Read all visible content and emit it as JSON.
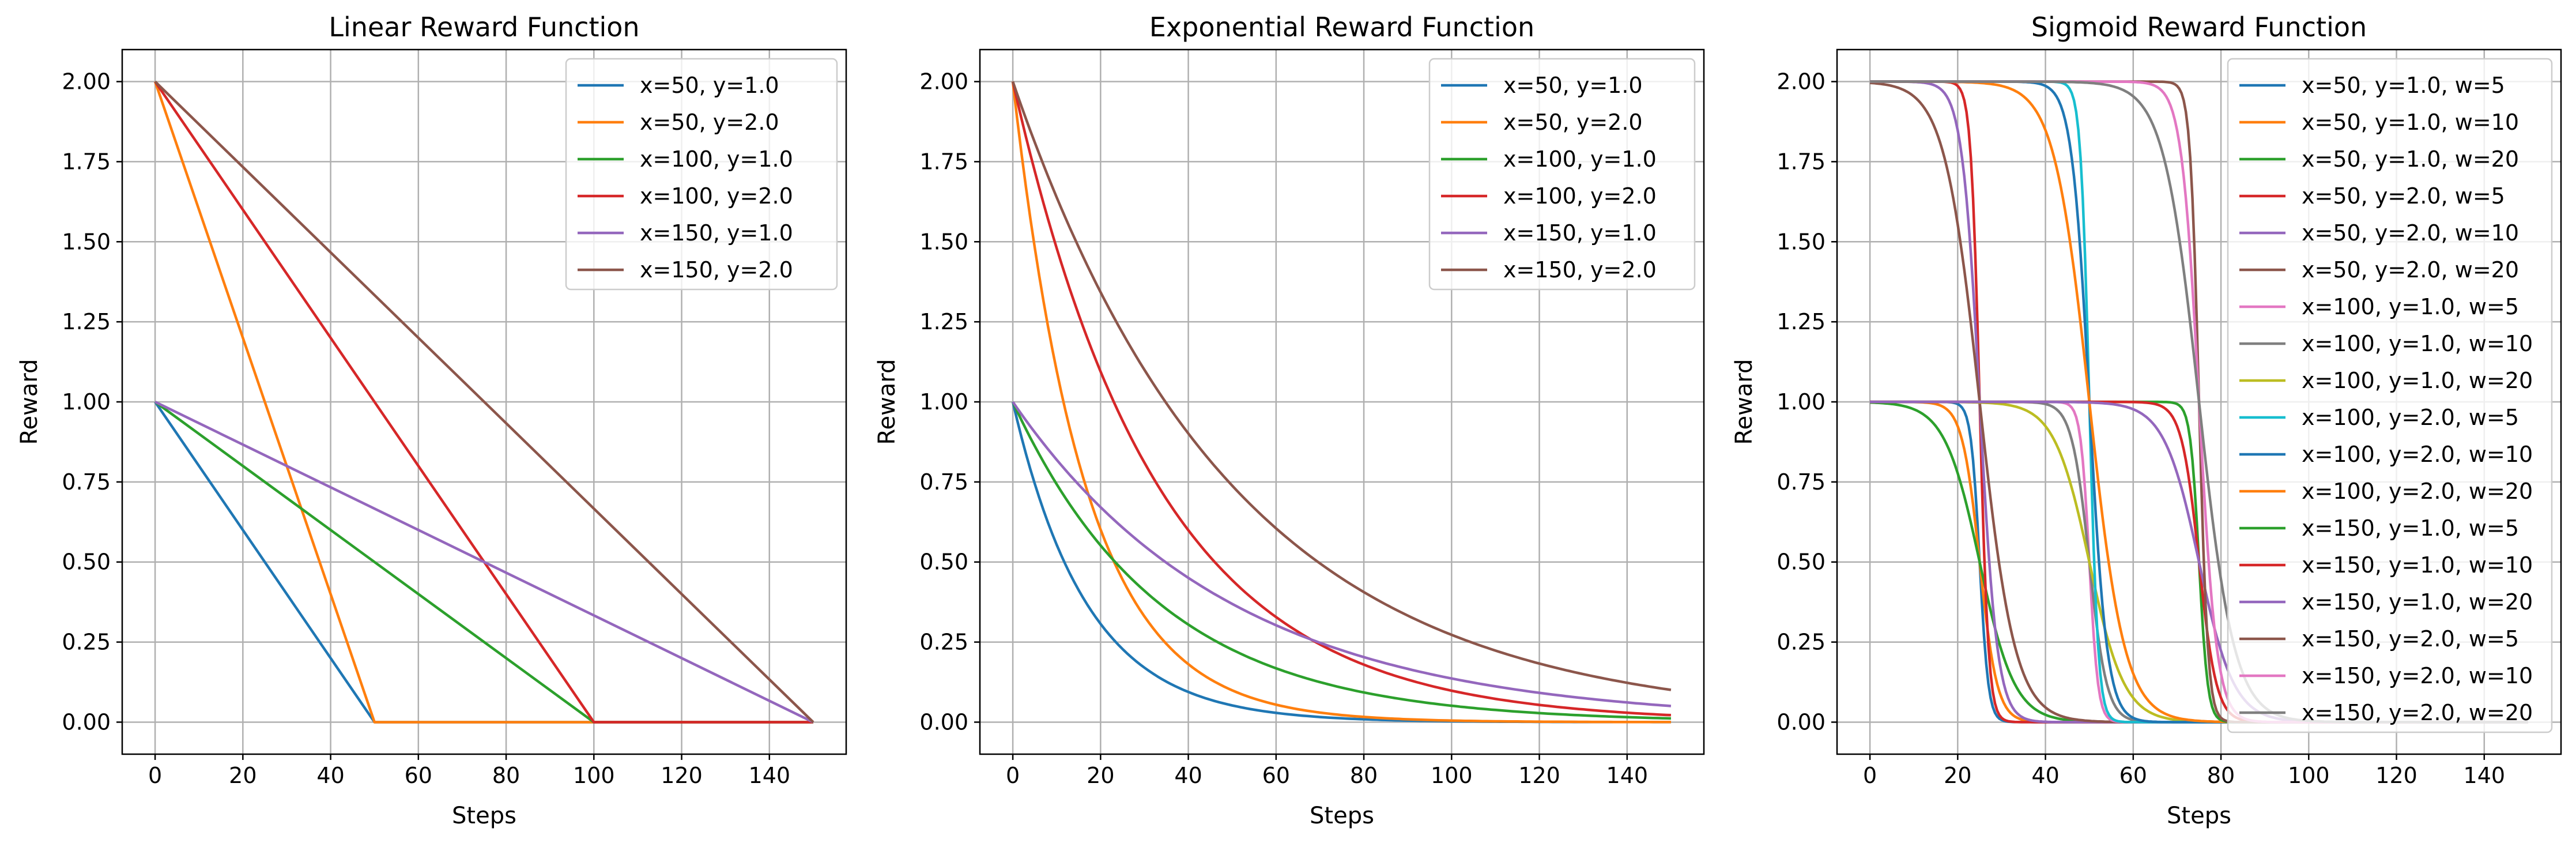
{
  "figure": {
    "colors": [
      "#1f77b4",
      "#ff7f0e",
      "#2ca02c",
      "#d62728",
      "#9467bd",
      "#8c564b",
      "#e377c2",
      "#7f7f7f",
      "#bcbd22",
      "#17becf"
    ]
  },
  "chart_data": [
    {
      "type": "line",
      "title": "Linear Reward Function",
      "xlabel": "Steps",
      "ylabel": "Reward",
      "xlim": [
        -7.5,
        157.5
      ],
      "ylim": [
        -0.1,
        2.1
      ],
      "xticks": [
        0,
        20,
        40,
        60,
        80,
        100,
        120,
        140
      ],
      "yticks": [
        "0.00",
        "0.25",
        "0.50",
        "0.75",
        "1.00",
        "1.25",
        "1.50",
        "1.75",
        "2.00"
      ],
      "grid": true,
      "legend_position": "top-right",
      "function": "linear",
      "series": [
        {
          "name": "x=50, y=1.0",
          "x": [
            0,
            50,
            150
          ],
          "y": [
            1.0,
            0,
            0
          ]
        },
        {
          "name": "x=50, y=2.0",
          "x": [
            0,
            50,
            150
          ],
          "y": [
            2.0,
            0,
            0
          ]
        },
        {
          "name": "x=100, y=1.0",
          "x": [
            0,
            100,
            150
          ],
          "y": [
            1.0,
            0,
            0
          ]
        },
        {
          "name": "x=100, y=2.0",
          "x": [
            0,
            100,
            150
          ],
          "y": [
            2.0,
            0,
            0
          ]
        },
        {
          "name": "x=150, y=1.0",
          "x": [
            0,
            150
          ],
          "y": [
            1.0,
            0
          ]
        },
        {
          "name": "x=150, y=2.0",
          "x": [
            0,
            150
          ],
          "y": [
            2.0,
            0
          ]
        }
      ]
    },
    {
      "type": "line",
      "title": "Exponential Reward Function",
      "xlabel": "Steps",
      "ylabel": "Reward",
      "xlim": [
        -7.5,
        157.5
      ],
      "ylim": [
        -0.1,
        2.1
      ],
      "xticks": [
        0,
        20,
        40,
        60,
        80,
        100,
        120,
        140
      ],
      "yticks": [
        "0.00",
        "0.25",
        "0.50",
        "0.75",
        "1.00",
        "1.25",
        "1.50",
        "1.75",
        "2.00"
      ],
      "grid": true,
      "legend_position": "top-right",
      "function": "exponential",
      "series": [
        {
          "name": "x=50, y=1.0",
          "x": [
            0,
            10,
            20,
            30,
            40,
            60,
            80,
            100,
            150
          ],
          "y": [
            1.0,
            0.55,
            0.3,
            0.17,
            0.09,
            0.03,
            0.01,
            0.0,
            0.0
          ]
        },
        {
          "name": "x=50, y=2.0",
          "x": [
            0,
            10,
            20,
            30,
            40,
            60,
            80,
            100,
            150
          ],
          "y": [
            2.0,
            1.1,
            0.61,
            0.33,
            0.18,
            0.05,
            0.02,
            0.0,
            0.0
          ]
        },
        {
          "name": "x=100, y=1.0",
          "x": [
            0,
            10,
            20,
            30,
            40,
            60,
            80,
            100,
            150
          ],
          "y": [
            1.0,
            0.74,
            0.55,
            0.41,
            0.3,
            0.17,
            0.09,
            0.05,
            0.01
          ]
        },
        {
          "name": "x=100, y=2.0",
          "x": [
            0,
            10,
            20,
            30,
            40,
            60,
            80,
            100,
            150
          ],
          "y": [
            2.0,
            1.48,
            1.1,
            0.81,
            0.61,
            0.33,
            0.18,
            0.1,
            0.02
          ]
        },
        {
          "name": "x=150, y=1.0",
          "x": [
            0,
            10,
            20,
            30,
            40,
            60,
            80,
            100,
            150
          ],
          "y": [
            1.0,
            0.82,
            0.67,
            0.55,
            0.45,
            0.3,
            0.2,
            0.14,
            0.02
          ]
        },
        {
          "name": "x=150, y=2.0",
          "x": [
            0,
            10,
            20,
            30,
            40,
            60,
            80,
            100,
            150
          ],
          "y": [
            2.0,
            1.64,
            1.34,
            1.1,
            0.9,
            0.61,
            0.41,
            0.27,
            0.02
          ]
        }
      ]
    },
    {
      "type": "line",
      "title": "Sigmoid Reward Function",
      "xlabel": "Steps",
      "ylabel": "Reward",
      "xlim": [
        -7.5,
        157.5
      ],
      "ylim": [
        -0.1,
        2.1
      ],
      "xticks": [
        0,
        20,
        40,
        60,
        80,
        100,
        120,
        140
      ],
      "yticks": [
        "0.00",
        "0.25",
        "0.50",
        "0.75",
        "1.00",
        "1.25",
        "1.50",
        "1.75",
        "2.00"
      ],
      "grid": true,
      "legend_position": "top-right",
      "function": "sigmoid",
      "series": [
        {
          "name": "x=50, y=1.0, w=5",
          "x": [
            0,
            20,
            23,
            25,
            27,
            30,
            40,
            150
          ],
          "y": [
            1.0,
            0.99,
            0.83,
            0.5,
            0.17,
            0.01,
            0.0,
            0.0
          ]
        },
        {
          "name": "x=50, y=1.0, w=10",
          "x": [
            0,
            15,
            20,
            25,
            30,
            35,
            45,
            150
          ],
          "y": [
            1.0,
            0.99,
            0.88,
            0.5,
            0.12,
            0.02,
            0.0,
            0.0
          ]
        },
        {
          "name": "x=50, y=1.0, w=20",
          "x": [
            0,
            10,
            20,
            25,
            30,
            40,
            50,
            150
          ],
          "y": [
            0.99,
            0.93,
            0.73,
            0.5,
            0.27,
            0.07,
            0.01,
            0.0
          ]
        },
        {
          "name": "x=50, y=2.0, w=5",
          "x": [
            0,
            20,
            23,
            25,
            27,
            30,
            40,
            150
          ],
          "y": [
            2.0,
            1.98,
            1.66,
            1.0,
            0.34,
            0.02,
            0.0,
            0.0
          ]
        },
        {
          "name": "x=50, y=2.0, w=10",
          "x": [
            0,
            15,
            20,
            25,
            30,
            35,
            45,
            150
          ],
          "y": [
            2.0,
            1.98,
            1.76,
            1.0,
            0.24,
            0.04,
            0.0,
            0.0
          ]
        },
        {
          "name": "x=50, y=2.0, w=20",
          "x": [
            0,
            10,
            20,
            25,
            30,
            40,
            50,
            150
          ],
          "y": [
            1.99,
            1.86,
            1.46,
            1.0,
            0.54,
            0.14,
            0.02,
            0.0
          ]
        },
        {
          "name": "x=100, y=1.0, w=5",
          "x": [
            0,
            45,
            48,
            50,
            52,
            55,
            65,
            150
          ],
          "y": [
            1.0,
            0.99,
            0.83,
            0.5,
            0.17,
            0.01,
            0.0,
            0.0
          ]
        },
        {
          "name": "x=100, y=1.0, w=10",
          "x": [
            0,
            40,
            45,
            50,
            55,
            60,
            70,
            150
          ],
          "y": [
            1.0,
            0.99,
            0.88,
            0.5,
            0.12,
            0.02,
            0.0,
            0.0
          ]
        },
        {
          "name": "x=100, y=1.0, w=20",
          "x": [
            0,
            30,
            40,
            50,
            60,
            70,
            80,
            150
          ],
          "y": [
            1.0,
            0.97,
            0.82,
            0.5,
            0.18,
            0.03,
            0.01,
            0.0
          ]
        },
        {
          "name": "x=100, y=2.0, w=5",
          "x": [
            0,
            45,
            48,
            50,
            52,
            55,
            65,
            150
          ],
          "y": [
            2.0,
            1.98,
            1.66,
            1.0,
            0.34,
            0.02,
            0.0,
            0.0
          ]
        },
        {
          "name": "x=100, y=2.0, w=10",
          "x": [
            0,
            40,
            45,
            50,
            55,
            60,
            70,
            150
          ],
          "y": [
            2.0,
            1.98,
            1.76,
            1.0,
            0.24,
            0.04,
            0.0,
            0.0
          ]
        },
        {
          "name": "x=100, y=2.0, w=20",
          "x": [
            0,
            30,
            40,
            50,
            60,
            70,
            80,
            150
          ],
          "y": [
            2.0,
            1.93,
            1.64,
            1.0,
            0.36,
            0.07,
            0.01,
            0.0
          ]
        },
        {
          "name": "x=150, y=1.0, w=5",
          "x": [
            0,
            70,
            73,
            75,
            77,
            80,
            90,
            150
          ],
          "y": [
            1.0,
            0.99,
            0.83,
            0.5,
            0.17,
            0.01,
            0.0,
            0.0
          ]
        },
        {
          "name": "x=150, y=1.0, w=10",
          "x": [
            0,
            65,
            70,
            75,
            80,
            85,
            95,
            150
          ],
          "y": [
            1.0,
            0.99,
            0.88,
            0.5,
            0.12,
            0.02,
            0.0,
            0.0
          ]
        },
        {
          "name": "x=150, y=1.0, w=20",
          "x": [
            0,
            55,
            65,
            75,
            85,
            95,
            105,
            150
          ],
          "y": [
            1.0,
            0.97,
            0.82,
            0.5,
            0.18,
            0.03,
            0.01,
            0.0
          ]
        },
        {
          "name": "x=150, y=2.0, w=5",
          "x": [
            0,
            70,
            73,
            75,
            77,
            80,
            90,
            150
          ],
          "y": [
            2.0,
            1.98,
            1.66,
            1.0,
            0.34,
            0.02,
            0.0,
            0.0
          ]
        },
        {
          "name": "x=150, y=2.0, w=10",
          "x": [
            0,
            65,
            70,
            75,
            80,
            85,
            95,
            150
          ],
          "y": [
            2.0,
            1.98,
            1.76,
            1.0,
            0.24,
            0.04,
            0.0,
            0.0
          ]
        },
        {
          "name": "x=150, y=2.0, w=20",
          "x": [
            0,
            55,
            65,
            75,
            85,
            95,
            105,
            150
          ],
          "y": [
            2.0,
            1.93,
            1.64,
            1.0,
            0.36,
            0.07,
            0.01,
            0.0
          ]
        }
      ]
    }
  ]
}
